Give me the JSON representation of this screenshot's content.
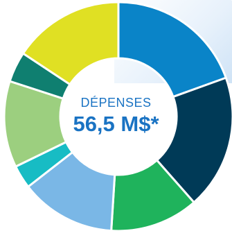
{
  "colors": {
    "center_text": "#1a73c3",
    "slice_border": "#ffffff"
  },
  "chart_data": {
    "type": "pie",
    "title": "DÉPENSES",
    "total_label": "56,5 M$*",
    "slices": [
      {
        "value": 19.5,
        "color": "#0a84c8"
      },
      {
        "value": 19.0,
        "color": "#003a57"
      },
      {
        "value": 12.5,
        "color": "#1fb35c"
      },
      {
        "value": 13.5,
        "color": "#7ab7e6"
      },
      {
        "value": 3.3,
        "color": "#17bcc4"
      },
      {
        "value": 12.2,
        "color": "#9ccf7f"
      },
      {
        "value": 4.3,
        "color": "#0f7f70"
      },
      {
        "value": 15.7,
        "color": "#e0e023"
      }
    ]
  }
}
